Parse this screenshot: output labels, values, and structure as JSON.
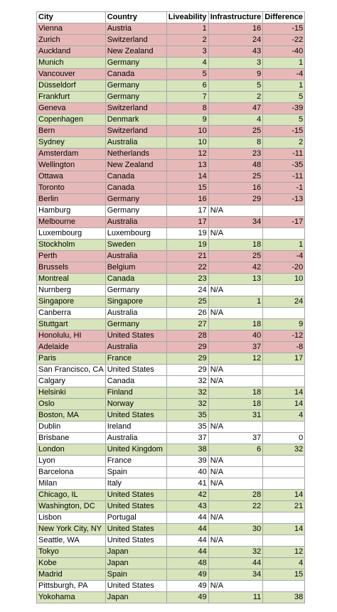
{
  "colors": {
    "red": "#e6b9b8",
    "green": "#d7e4bc",
    "none": "#ffffff",
    "gridline": "#a6a6a6"
  },
  "table": {
    "headers": [
      "City",
      "Country",
      "Liveability",
      "Infrastructure",
      "Difference"
    ],
    "rows": [
      {
        "city": "Vienna",
        "country": "Austria",
        "liveability": "1",
        "infrastructure": "16",
        "difference": "-15",
        "tone": "red"
      },
      {
        "city": "Zurich",
        "country": "Switzerland",
        "liveability": "2",
        "infrastructure": "24",
        "difference": "-22",
        "tone": "red"
      },
      {
        "city": "Auckland",
        "country": "New Zealand",
        "liveability": "3",
        "infrastructure": "43",
        "difference": "-40",
        "tone": "red"
      },
      {
        "city": "Munich",
        "country": "Germany",
        "liveability": "4",
        "infrastructure": "3",
        "difference": "1",
        "tone": "green"
      },
      {
        "city": "Vancouver",
        "country": "Canada",
        "liveability": "5",
        "infrastructure": "9",
        "difference": "-4",
        "tone": "red"
      },
      {
        "city": "Düsseldorf",
        "country": "Germany",
        "liveability": "6",
        "infrastructure": "5",
        "difference": "1",
        "tone": "green"
      },
      {
        "city": "Frankfurt",
        "country": "Germany",
        "liveability": "7",
        "infrastructure": "2",
        "difference": "5",
        "tone": "green"
      },
      {
        "city": "Geneva",
        "country": "Switzerland",
        "liveability": "8",
        "infrastructure": "47",
        "difference": "-39",
        "tone": "red"
      },
      {
        "city": "Copenhagen",
        "country": "Denmark",
        "liveability": "9",
        "infrastructure": "4",
        "difference": "5",
        "tone": "green"
      },
      {
        "city": "Bern",
        "country": "Switzerland",
        "liveability": "10",
        "infrastructure": "25",
        "difference": "-15",
        "tone": "red"
      },
      {
        "city": "Sydney",
        "country": "Australia",
        "liveability": "10",
        "infrastructure": "8",
        "difference": "2",
        "tone": "green"
      },
      {
        "city": "Amsterdam",
        "country": "Netherlands",
        "liveability": "12",
        "infrastructure": "23",
        "difference": "-11",
        "tone": "red"
      },
      {
        "city": "Wellington",
        "country": "New Zealand",
        "liveability": "13",
        "infrastructure": "48",
        "difference": "-35",
        "tone": "red"
      },
      {
        "city": "Ottawa",
        "country": "Canada",
        "liveability": "14",
        "infrastructure": "25",
        "difference": "-11",
        "tone": "red"
      },
      {
        "city": "Toronto",
        "country": "Canada",
        "liveability": "15",
        "infrastructure": "16",
        "difference": "-1",
        "tone": "red"
      },
      {
        "city": "Berlin",
        "country": "Germany",
        "liveability": "16",
        "infrastructure": "29",
        "difference": "-13",
        "tone": "red"
      },
      {
        "city": "Hamburg",
        "country": "Germany",
        "liveability": "17",
        "infrastructure": "N/A",
        "difference": "",
        "tone": "none"
      },
      {
        "city": "Melbourne",
        "country": "Australia",
        "liveability": "17",
        "infrastructure": "34",
        "difference": "-17",
        "tone": "red"
      },
      {
        "city": "Luxembourg",
        "country": "Luxembourg",
        "liveability": "19",
        "infrastructure": "N/A",
        "difference": "",
        "tone": "none"
      },
      {
        "city": "Stockholm",
        "country": "Sweden",
        "liveability": "19",
        "infrastructure": "18",
        "difference": "1",
        "tone": "green"
      },
      {
        "city": "Perth",
        "country": "Australia",
        "liveability": "21",
        "infrastructure": "25",
        "difference": "-4",
        "tone": "red"
      },
      {
        "city": "Brussels",
        "country": "Belgium",
        "liveability": "22",
        "infrastructure": "42",
        "difference": "-20",
        "tone": "red"
      },
      {
        "city": "Montreal",
        "country": "Canada",
        "liveability": "23",
        "infrastructure": "13",
        "difference": "10",
        "tone": "green"
      },
      {
        "city": "Nurnberg",
        "country": "Germany",
        "liveability": "24",
        "infrastructure": "N/A",
        "difference": "",
        "tone": "none"
      },
      {
        "city": "Singapore",
        "country": "Singapore",
        "liveability": "25",
        "infrastructure": "1",
        "difference": "24",
        "tone": "green"
      },
      {
        "city": "Canberra",
        "country": "Australia",
        "liveability": "26",
        "infrastructure": "N/A",
        "difference": "",
        "tone": "none"
      },
      {
        "city": "Stuttgart",
        "country": "Germany",
        "liveability": "27",
        "infrastructure": "18",
        "difference": "9",
        "tone": "green"
      },
      {
        "city": "Honolulu, HI",
        "country": "United States",
        "liveability": "28",
        "infrastructure": "40",
        "difference": "-12",
        "tone": "red"
      },
      {
        "city": "Adelaide",
        "country": "Australia",
        "liveability": "29",
        "infrastructure": "37",
        "difference": "-8",
        "tone": "red"
      },
      {
        "city": "Paris",
        "country": "France",
        "liveability": "29",
        "infrastructure": "12",
        "difference": "17",
        "tone": "green"
      },
      {
        "city": "San Francisco, CA",
        "country": "United States",
        "liveability": "29",
        "infrastructure": "N/A",
        "difference": "",
        "tone": "none"
      },
      {
        "city": "Calgary",
        "country": "Canada",
        "liveability": "32",
        "infrastructure": "N/A",
        "difference": "",
        "tone": "none"
      },
      {
        "city": "Helsinki",
        "country": "Finland",
        "liveability": "32",
        "infrastructure": "18",
        "difference": "14",
        "tone": "green"
      },
      {
        "city": "Oslo",
        "country": "Norway",
        "liveability": "32",
        "infrastructure": "18",
        "difference": "14",
        "tone": "green"
      },
      {
        "city": "Boston, MA",
        "country": "United States",
        "liveability": "35",
        "infrastructure": "31",
        "difference": "4",
        "tone": "green"
      },
      {
        "city": "Dublin",
        "country": "Ireland",
        "liveability": "35",
        "infrastructure": "N/A",
        "difference": "",
        "tone": "none"
      },
      {
        "city": "Brisbane",
        "country": "Australia",
        "liveability": "37",
        "infrastructure": "37",
        "difference": "0",
        "tone": "none"
      },
      {
        "city": "London",
        "country": "United Kingdom",
        "liveability": "38",
        "infrastructure": "6",
        "difference": "32",
        "tone": "green"
      },
      {
        "city": "Lyon",
        "country": "France",
        "liveability": "39",
        "infrastructure": "N/A",
        "difference": "",
        "tone": "none"
      },
      {
        "city": "Barcelona",
        "country": "Spain",
        "liveability": "40",
        "infrastructure": "N/A",
        "difference": "",
        "tone": "none"
      },
      {
        "city": "Milan",
        "country": "Italy",
        "liveability": "41",
        "infrastructure": "N/A",
        "difference": "",
        "tone": "none"
      },
      {
        "city": "Chicago, IL",
        "country": "United States",
        "liveability": "42",
        "infrastructure": "28",
        "difference": "14",
        "tone": "green"
      },
      {
        "city": "Washington, DC",
        "country": "United States",
        "liveability": "43",
        "infrastructure": "22",
        "difference": "21",
        "tone": "green"
      },
      {
        "city": "Lisbon",
        "country": "Portugal",
        "liveability": "44",
        "infrastructure": "N/A",
        "difference": "",
        "tone": "none"
      },
      {
        "city": "New York City, NY",
        "country": "United States",
        "liveability": "44",
        "infrastructure": "30",
        "difference": "14",
        "tone": "green"
      },
      {
        "city": "Seattle, WA",
        "country": "United States",
        "liveability": "44",
        "infrastructure": "N/A",
        "difference": "",
        "tone": "none"
      },
      {
        "city": "Tokyo",
        "country": "Japan",
        "liveability": "44",
        "infrastructure": "32",
        "difference": "12",
        "tone": "green"
      },
      {
        "city": "Kobe",
        "country": "Japan",
        "liveability": "48",
        "infrastructure": "44",
        "difference": "4",
        "tone": "green"
      },
      {
        "city": "Madrid",
        "country": "Spain",
        "liveability": "49",
        "infrastructure": "34",
        "difference": "15",
        "tone": "green"
      },
      {
        "city": "Pittsburgh, PA",
        "country": "United States",
        "liveability": "49",
        "infrastructure": "N/A",
        "difference": "",
        "tone": "none"
      },
      {
        "city": "Yokohama",
        "country": "Japan",
        "liveability": "49",
        "infrastructure": "11",
        "difference": "38",
        "tone": "green"
      }
    ]
  }
}
